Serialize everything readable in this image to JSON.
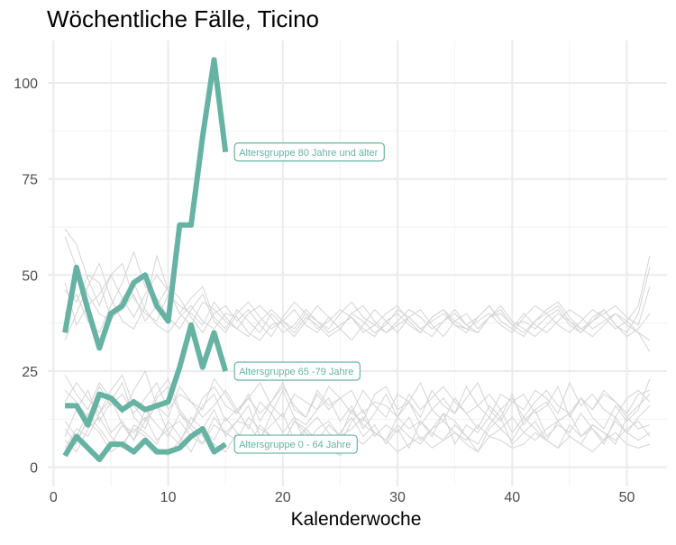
{
  "chart_data": {
    "type": "line",
    "title": "Wöchentliche Fälle, Ticino",
    "xlabel": "Kalenderwoche",
    "ylabel": "",
    "xlim": [
      -0.5,
      53.5
    ],
    "ylim": [
      -5,
      111
    ],
    "x_ticks": [
      0,
      10,
      20,
      30,
      40,
      50
    ],
    "y_ticks": [
      0,
      25,
      50,
      75,
      100
    ],
    "grid": true,
    "highlight_color": "#67b3a3",
    "background_color": "#d4d4d4",
    "series": [
      {
        "name": "Altersgruppe 80 Jahre und älter",
        "x": [
          1,
          2,
          3,
          4,
          5,
          6,
          7,
          8,
          9,
          10,
          11,
          12,
          13,
          14,
          15
        ],
        "values": [
          35,
          52,
          41,
          31,
          40,
          42,
          48,
          50,
          42,
          38,
          63,
          63,
          86,
          106,
          82
        ]
      },
      {
        "name": "Altersgruppe 65 -79 Jahre",
        "x": [
          1,
          2,
          3,
          4,
          5,
          6,
          7,
          8,
          9,
          10,
          11,
          12,
          13,
          14,
          15
        ],
        "values": [
          16,
          16,
          11,
          19,
          18,
          15,
          17,
          15,
          16,
          17,
          26,
          37,
          26,
          35,
          25
        ]
      },
      {
        "name": "Altersgruppe 0 - 64 Jahre",
        "x": [
          1,
          2,
          3,
          4,
          5,
          6,
          7,
          8,
          9,
          10,
          11,
          12,
          13,
          14,
          15
        ],
        "values": [
          3,
          8,
          5,
          2,
          6,
          6,
          4,
          7,
          4,
          4,
          5,
          8,
          10,
          4,
          6
        ]
      }
    ],
    "background_series": [
      [
        60,
        52,
        45,
        40,
        38,
        44,
        48,
        41,
        37,
        35,
        39,
        42,
        38,
        36,
        40,
        39,
        35,
        33,
        37,
        38,
        36,
        40,
        38,
        35,
        37,
        39,
        36,
        34,
        38,
        40,
        37,
        35,
        39,
        41,
        38,
        36,
        35,
        39,
        40,
        37,
        38,
        36,
        39,
        41,
        37,
        35,
        38,
        40,
        42,
        39,
        37,
        47
      ],
      [
        62,
        58,
        49,
        42,
        50,
        44,
        39,
        45,
        50,
        46,
        40,
        37,
        43,
        41,
        38,
        36,
        40,
        42,
        39,
        35,
        37,
        41,
        38,
        36,
        40,
        43,
        39,
        37,
        35,
        38,
        41,
        39,
        36,
        38,
        40,
        37,
        39,
        42,
        38,
        36,
        34,
        38,
        41,
        43,
        39,
        36,
        38,
        41,
        37,
        35,
        40,
        52
      ],
      [
        46,
        43,
        50,
        48,
        39,
        41,
        45,
        38,
        42,
        47,
        44,
        39,
        35,
        40,
        42,
        38,
        41,
        37,
        34,
        39,
        43,
        40,
        36,
        38,
        41,
        39,
        35,
        37,
        40,
        42,
        38,
        35,
        39,
        41,
        37,
        36,
        38,
        40,
        37,
        35,
        39,
        42,
        40,
        37,
        35,
        38,
        41,
        39,
        36,
        38,
        42,
        55
      ],
      [
        33,
        40,
        47,
        53,
        44,
        38,
        36,
        42,
        55,
        46,
        40,
        44,
        47,
        39,
        36,
        41,
        38,
        35,
        40,
        37,
        34,
        38,
        42,
        39,
        36,
        33,
        37,
        41,
        38,
        35,
        39,
        36,
        34,
        38,
        41,
        37,
        35,
        39,
        42,
        38,
        36,
        34,
        37,
        40,
        38,
        35,
        39,
        41,
        37,
        34,
        36,
        40
      ],
      [
        48,
        37,
        42,
        45,
        50,
        53,
        44,
        40,
        38,
        45,
        42,
        40,
        37,
        43,
        39,
        36,
        34,
        38,
        41,
        38,
        35,
        39,
        37,
        34,
        36,
        40,
        42,
        38,
        35,
        37,
        39,
        41,
        37,
        34,
        38,
        40,
        36,
        39,
        41,
        37,
        35,
        38,
        40,
        42,
        38,
        36,
        34,
        37,
        40,
        38,
        35,
        30
      ],
      [
        40,
        45,
        38,
        35,
        42,
        48,
        56,
        47,
        44,
        39,
        36,
        41,
        45,
        38,
        35,
        40,
        43,
        39,
        36,
        38,
        41,
        37,
        35,
        39,
        36,
        40,
        38,
        35,
        37,
        41,
        39,
        36,
        38,
        40,
        37,
        35,
        39,
        42,
        38,
        36,
        40,
        37,
        35,
        38,
        41,
        39,
        36,
        38,
        40,
        37,
        35,
        33
      ],
      [
        3,
        7,
        12,
        9,
        4,
        6,
        10,
        8,
        5,
        3,
        7,
        11,
        8,
        6,
        4,
        9,
        7,
        5,
        8,
        6,
        4,
        10,
        7,
        5,
        3,
        8,
        6,
        9,
        7,
        4,
        6,
        8,
        5,
        7,
        9,
        6,
        4,
        8,
        7,
        5,
        6,
        9,
        7,
        5,
        8,
        6,
        4,
        7,
        9,
        6,
        5,
        6
      ],
      [
        12,
        8,
        14,
        10,
        6,
        11,
        9,
        13,
        7,
        10,
        12,
        8,
        6,
        11,
        9,
        7,
        13,
        10,
        8,
        6,
        12,
        9,
        7,
        11,
        8,
        10,
        13,
        9,
        7,
        11,
        8,
        6,
        10,
        12,
        9,
        7,
        11,
        8,
        10,
        13,
        9,
        7,
        10,
        12,
        8,
        6,
        11,
        9,
        7,
        10,
        12,
        8
      ],
      [
        20,
        17,
        13,
        21,
        16,
        19,
        14,
        18,
        22,
        15,
        19,
        17,
        13,
        16,
        20,
        15,
        18,
        14,
        17,
        21,
        16,
        13,
        19,
        15,
        18,
        20,
        14,
        17,
        16,
        13,
        19,
        15,
        18,
        21,
        17,
        14,
        16,
        19,
        15,
        18,
        13,
        17,
        20,
        16,
        14,
        18,
        15,
        19,
        17,
        13,
        16,
        19
      ],
      [
        8,
        15,
        20,
        12,
        17,
        22,
        13,
        10,
        18,
        21,
        14,
        11,
        16,
        19,
        12,
        15,
        10,
        17,
        14,
        20,
        13,
        11,
        15,
        18,
        12,
        16,
        10,
        14,
        19,
        13,
        17,
        11,
        15,
        12,
        18,
        14,
        10,
        16,
        13,
        19,
        11,
        15,
        17,
        12,
        14,
        18,
        13,
        10,
        16,
        12,
        15,
        23
      ],
      [
        24,
        19,
        15,
        22,
        18,
        14,
        20,
        25,
        16,
        13,
        21,
        17,
        15,
        23,
        19,
        14,
        18,
        22,
        16,
        13,
        19,
        17,
        15,
        21,
        18,
        14,
        20,
        16,
        13,
        19,
        17,
        22,
        15,
        18,
        14,
        21,
        16,
        13,
        19,
        17,
        15,
        20,
        18,
        14,
        22,
        16,
        19,
        15,
        13,
        18,
        20,
        17
      ],
      [
        10,
        6,
        13,
        16,
        9,
        12,
        7,
        15,
        11,
        8,
        14,
        10,
        6,
        13,
        9,
        12,
        16,
        8,
        11,
        14,
        7,
        10,
        13,
        9,
        6,
        12,
        15,
        8,
        11,
        9,
        13,
        7,
        10,
        14,
        12,
        8,
        6,
        11,
        15,
        9,
        13,
        10,
        7,
        12,
        14,
        8,
        11,
        9,
        6,
        13,
        10,
        11
      ],
      [
        5,
        10,
        8,
        14,
        18,
        11,
        7,
        12,
        16,
        9,
        6,
        13,
        10,
        15,
        8,
        12,
        11,
        7,
        14,
        9,
        13,
        6,
        10,
        12,
        8,
        15,
        11,
        9,
        7,
        13,
        10,
        12,
        8,
        14,
        6,
        11,
        9,
        13,
        10,
        7,
        12,
        15,
        8,
        11,
        9,
        14,
        10,
        7,
        12,
        9,
        13,
        16
      ],
      [
        17,
        22,
        18,
        14,
        20,
        24,
        16,
        12,
        19,
        23,
        15,
        11,
        18,
        21,
        16,
        14,
        19,
        12,
        17,
        22,
        15,
        13,
        20,
        16,
        18,
        14,
        12,
        19,
        21,
        15,
        17,
        13,
        20,
        16,
        14,
        18,
        22,
        15,
        12,
        17,
        19,
        14,
        16,
        21,
        13,
        18,
        15,
        20,
        17,
        14,
        19,
        20
      ],
      [
        7,
        4,
        10,
        13,
        8,
        5,
        11,
        9,
        6,
        12,
        8,
        4,
        10,
        7,
        13,
        9,
        5,
        11,
        8,
        6,
        12,
        10,
        7,
        4,
        9,
        13,
        8,
        11,
        6,
        10,
        5,
        12,
        9,
        7,
        11,
        8,
        4,
        10,
        13,
        6,
        9,
        12,
        7,
        5,
        11,
        8,
        10,
        6,
        13,
        9,
        7,
        9
      ]
    ]
  }
}
